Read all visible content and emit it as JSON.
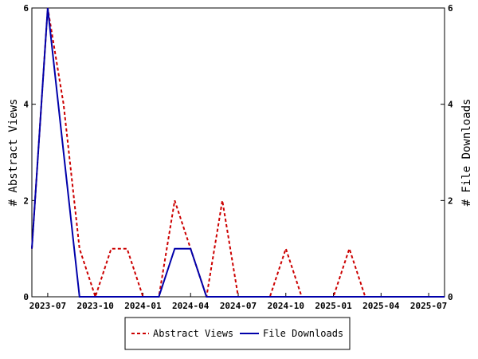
{
  "chart_data": {
    "type": "line",
    "title": "",
    "ylabel_left": "# Abstract Views",
    "ylabel_right": "# File Downloads",
    "ylim": [
      0,
      6
    ],
    "yticks": [
      "0",
      "2",
      "4",
      "6"
    ],
    "x_tick_labels": [
      "2023-07",
      "2023-10",
      "2024-01",
      "2024-04",
      "2024-07",
      "2024-10",
      "2025-01",
      "2025-04",
      "2025-07"
    ],
    "x": [
      "2023-06",
      "2023-07",
      "2023-08",
      "2023-09",
      "2023-10",
      "2023-11",
      "2023-12",
      "2024-01",
      "2024-02",
      "2024-03",
      "2024-04",
      "2024-05",
      "2024-06",
      "2024-07",
      "2024-08",
      "2024-09",
      "2024-10",
      "2024-11",
      "2024-12",
      "2025-01",
      "2025-02",
      "2025-03",
      "2025-04",
      "2025-05",
      "2025-06",
      "2025-07",
      "2025-08"
    ],
    "series": [
      {
        "name": "Abstract Views",
        "color": "#cc0000",
        "style": "dashed",
        "values": [
          1,
          6,
          4,
          1,
          0,
          1,
          1,
          0,
          0,
          2,
          1,
          0,
          2,
          0,
          0,
          0,
          1,
          0,
          0,
          0,
          1,
          0,
          0,
          0,
          0,
          0,
          0
        ]
      },
      {
        "name": "File Downloads",
        "color": "#0000aa",
        "style": "solid",
        "values": [
          1,
          6,
          3,
          0,
          0,
          0,
          0,
          0,
          0,
          1,
          1,
          0,
          0,
          0,
          0,
          0,
          0,
          0,
          0,
          0,
          0,
          0,
          0,
          0,
          0,
          0,
          0
        ]
      }
    ],
    "grid": false,
    "legend_position": "bottom"
  }
}
